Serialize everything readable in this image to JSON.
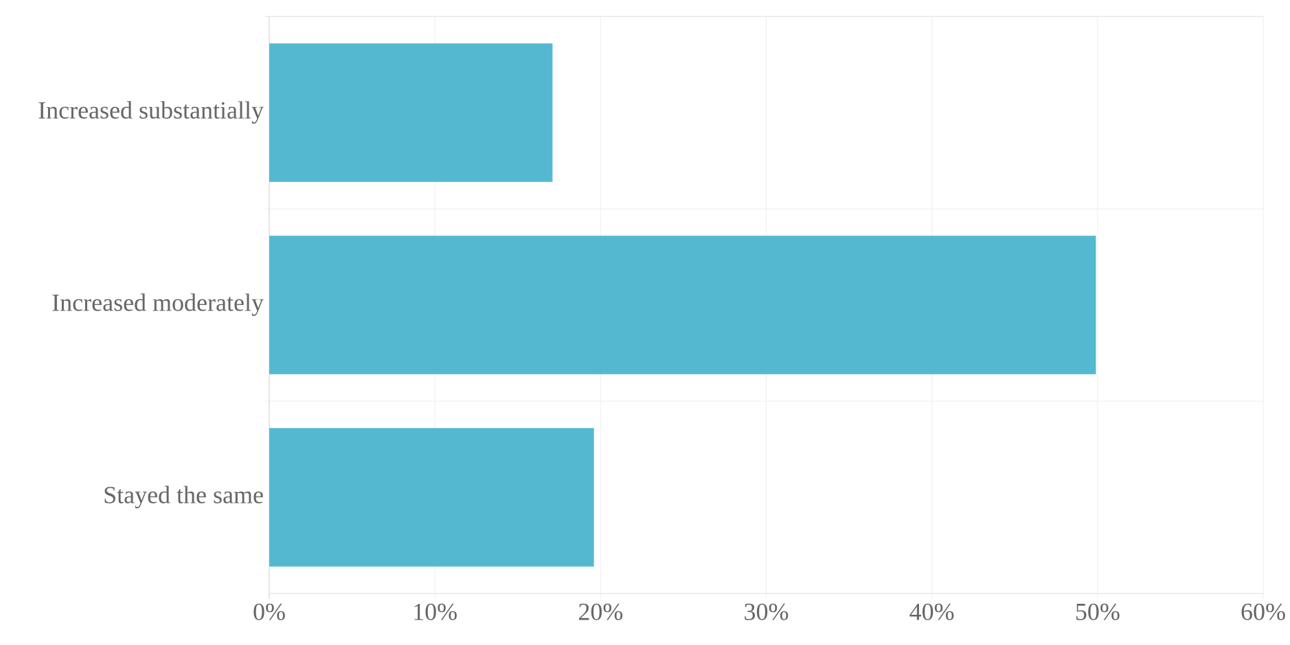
{
  "chart_data": {
    "type": "bar",
    "orientation": "horizontal",
    "categories": [
      "Increased substantially",
      "Increased moderately",
      "Stayed the same"
    ],
    "values": [
      17.1,
      49.9,
      19.6
    ],
    "color": "#54b9d0",
    "xlim": [
      0,
      60
    ],
    "xticks": [
      {
        "value": 0,
        "label": "0%"
      },
      {
        "value": 10,
        "label": "10%"
      },
      {
        "value": 20,
        "label": "20%"
      },
      {
        "value": 30,
        "label": "30%"
      },
      {
        "value": 40,
        "label": "40%"
      },
      {
        "value": 50,
        "label": "50%"
      },
      {
        "value": 60,
        "label": "60%"
      }
    ],
    "grid": true
  }
}
